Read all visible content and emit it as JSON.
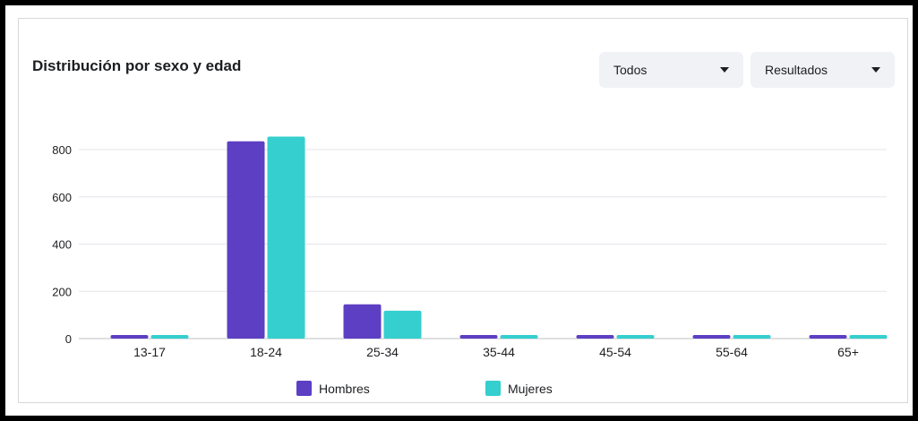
{
  "header": {
    "title": "Distribución por sexo y edad",
    "filter_audience": "Todos",
    "filter_metric": "Resultados"
  },
  "colors": {
    "hombres": "#5d3fc4",
    "mujeres": "#34cfce",
    "grid": "#e4e6eb"
  },
  "icons": {
    "dropdown": "caret-down-icon"
  },
  "chart_data": {
    "type": "bar",
    "title": "Distribución por sexo y edad",
    "xlabel": "",
    "ylabel": "",
    "categories": [
      "13-17",
      "18-24",
      "25-34",
      "35-44",
      "45-54",
      "55-64",
      "65+"
    ],
    "series": [
      {
        "name": "Hombres",
        "values": [
          15,
          835,
          145,
          15,
          15,
          15,
          15
        ]
      },
      {
        "name": "Mujeres",
        "values": [
          15,
          855,
          118,
          15,
          15,
          15,
          15
        ]
      }
    ],
    "yticks": [
      0,
      200,
      400,
      600,
      800
    ],
    "ylim": [
      0,
      900
    ],
    "grid": true,
    "legend": "bottom"
  }
}
